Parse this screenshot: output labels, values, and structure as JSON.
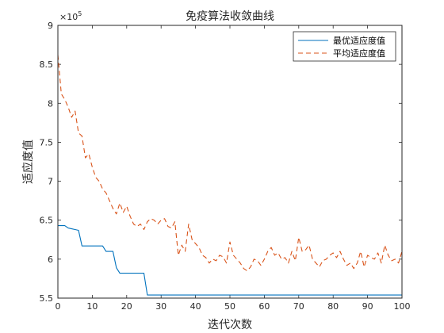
{
  "chart_data": {
    "type": "line",
    "title": "免疫算法收敛曲线",
    "xlabel": "迭代次数",
    "ylabel": "适应度值",
    "y_multiplier_label": "×10",
    "y_multiplier_exponent": "5",
    "xlim": [
      0,
      100
    ],
    "ylim": [
      5.5,
      9
    ],
    "y_scale_note": "values in units of 10^5",
    "xticks": [
      0,
      10,
      20,
      30,
      40,
      50,
      60,
      70,
      80,
      90,
      100
    ],
    "yticks": [
      5.5,
      6,
      6.5,
      7,
      7.5,
      8,
      8.5,
      9
    ],
    "grid": false,
    "legend_position": "top-right",
    "series": [
      {
        "name": "最优适应度值",
        "style": "solid",
        "color": "#0072BD",
        "x": [
          0,
          1,
          2,
          3,
          4,
          5,
          6,
          7,
          8,
          9,
          10,
          11,
          12,
          13,
          14,
          15,
          16,
          17,
          18,
          19,
          20,
          21,
          22,
          23,
          24,
          25,
          26,
          27,
          28,
          29,
          30,
          31,
          32,
          33,
          34,
          35,
          36,
          37,
          38,
          39,
          40,
          41,
          42,
          43,
          44,
          45,
          46,
          47,
          48,
          49,
          50,
          51,
          52,
          53,
          54,
          55,
          56,
          57,
          58,
          59,
          60,
          61,
          62,
          63,
          64,
          65,
          66,
          67,
          68,
          69,
          70,
          71,
          72,
          73,
          74,
          75,
          76,
          77,
          78,
          79,
          80,
          81,
          82,
          83,
          84,
          85,
          86,
          87,
          88,
          89,
          90,
          91,
          92,
          93,
          94,
          95,
          96,
          97,
          98,
          99,
          100
        ],
        "values": [
          6.43,
          6.43,
          6.43,
          6.4,
          6.39,
          6.38,
          6.37,
          6.17,
          6.17,
          6.17,
          6.17,
          6.17,
          6.17,
          6.17,
          6.1,
          6.1,
          6.1,
          5.89,
          5.82,
          5.82,
          5.82,
          5.82,
          5.82,
          5.82,
          5.82,
          5.82,
          5.54,
          5.54,
          5.54,
          5.54,
          5.54,
          5.54,
          5.54,
          5.54,
          5.54,
          5.54,
          5.54,
          5.54,
          5.54,
          5.54,
          5.54,
          5.54,
          5.54,
          5.54,
          5.54,
          5.54,
          5.54,
          5.54,
          5.54,
          5.54,
          5.54,
          5.54,
          5.54,
          5.54,
          5.54,
          5.54,
          5.54,
          5.54,
          5.54,
          5.54,
          5.54,
          5.54,
          5.54,
          5.54,
          5.54,
          5.54,
          5.54,
          5.54,
          5.54,
          5.54,
          5.54,
          5.54,
          5.54,
          5.54,
          5.54,
          5.54,
          5.54,
          5.54,
          5.54,
          5.54,
          5.54,
          5.54,
          5.54,
          5.54,
          5.54,
          5.54,
          5.54,
          5.54,
          5.54,
          5.54,
          5.54,
          5.54,
          5.54,
          5.54,
          5.54,
          5.54,
          5.54,
          5.54,
          5.54,
          5.54,
          5.54
        ]
      },
      {
        "name": "平均适应度值",
        "style": "dashed",
        "color": "#D95319",
        "x": [
          0,
          1,
          2,
          3,
          4,
          5,
          6,
          7,
          8,
          9,
          10,
          11,
          12,
          13,
          14,
          15,
          16,
          17,
          18,
          19,
          20,
          21,
          22,
          23,
          24,
          25,
          26,
          27,
          28,
          29,
          30,
          31,
          32,
          33,
          34,
          35,
          36,
          37,
          38,
          39,
          40,
          41,
          42,
          43,
          44,
          45,
          46,
          47,
          48,
          49,
          50,
          51,
          52,
          53,
          54,
          55,
          56,
          57,
          58,
          59,
          60,
          61,
          62,
          63,
          64,
          65,
          66,
          67,
          68,
          69,
          70,
          71,
          72,
          73,
          74,
          75,
          76,
          77,
          78,
          79,
          80,
          81,
          82,
          83,
          84,
          85,
          86,
          87,
          88,
          89,
          90,
          91,
          92,
          93,
          94,
          95,
          96,
          97,
          98,
          99,
          100
        ],
        "values": [
          8.62,
          8.12,
          8.05,
          7.95,
          7.82,
          7.9,
          7.62,
          7.58,
          7.3,
          7.35,
          7.18,
          7.05,
          7.0,
          6.9,
          6.85,
          6.75,
          6.65,
          6.58,
          6.72,
          6.6,
          6.68,
          6.55,
          6.45,
          6.42,
          6.45,
          6.38,
          6.48,
          6.52,
          6.5,
          6.45,
          6.5,
          6.52,
          6.42,
          6.4,
          6.48,
          6.05,
          6.18,
          6.1,
          6.45,
          6.25,
          6.2,
          6.15,
          6.05,
          6.02,
          5.95,
          6.0,
          5.98,
          6.05,
          6.03,
          5.95,
          6.22,
          6.05,
          6.0,
          5.95,
          5.88,
          5.85,
          5.9,
          6.0,
          5.98,
          5.92,
          6.0,
          6.1,
          6.15,
          6.05,
          6.08,
          6.0,
          6.02,
          5.95,
          6.1,
          5.98,
          6.28,
          6.1,
          6.12,
          6.18,
          6.0,
          5.95,
          5.9,
          5.98,
          6.0,
          6.05,
          6.08,
          6.02,
          6.1,
          6.0,
          5.92,
          5.95,
          5.88,
          5.95,
          6.1,
          5.9,
          6.05,
          6.02,
          6.0,
          6.08,
          5.95,
          6.18,
          6.05,
          5.98,
          6.0,
          5.95,
          6.1
        ]
      }
    ]
  }
}
